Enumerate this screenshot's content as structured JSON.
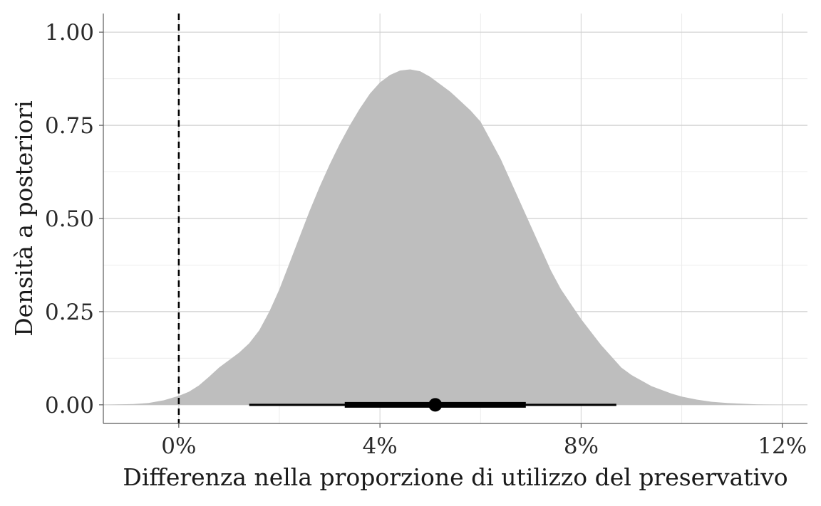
{
  "chart_data": {
    "type": "area",
    "title": "",
    "xlabel": "Differenza nella proporzione di utilizzo del preservativo",
    "ylabel": "Densità a posteriori",
    "xlim": [
      -0.015,
      0.125
    ],
    "ylim": [
      -0.05,
      1.05
    ],
    "x_ticks": [
      0,
      0.04,
      0.08,
      0.12
    ],
    "x_tick_labels": [
      "0%",
      "4%",
      "8%",
      "12%"
    ],
    "y_ticks": [
      0,
      0.25,
      0.5,
      0.75,
      1.0
    ],
    "y_tick_labels": [
      "0.00",
      "0.25",
      "0.50",
      "0.75",
      "1.00"
    ],
    "grid": true,
    "density": {
      "x": [
        -0.015,
        -0.012,
        -0.009,
        -0.006,
        -0.003,
        0.0,
        0.002,
        0.004,
        0.006,
        0.008,
        0.01,
        0.012,
        0.014,
        0.016,
        0.018,
        0.02,
        0.022,
        0.024,
        0.026,
        0.028,
        0.03,
        0.032,
        0.034,
        0.036,
        0.038,
        0.04,
        0.042,
        0.044,
        0.046,
        0.048,
        0.05,
        0.052,
        0.054,
        0.056,
        0.058,
        0.06,
        0.062,
        0.064,
        0.066,
        0.068,
        0.07,
        0.072,
        0.074,
        0.076,
        0.078,
        0.08,
        0.082,
        0.084,
        0.086,
        0.088,
        0.09,
        0.092,
        0.094,
        0.096,
        0.098,
        0.1,
        0.103,
        0.106,
        0.109,
        0.112,
        0.115,
        0.118,
        0.12
      ],
      "y": [
        0.0,
        0.001,
        0.002,
        0.005,
        0.012,
        0.024,
        0.035,
        0.052,
        0.075,
        0.1,
        0.12,
        0.14,
        0.165,
        0.2,
        0.25,
        0.31,
        0.38,
        0.45,
        0.52,
        0.585,
        0.645,
        0.7,
        0.75,
        0.795,
        0.835,
        0.865,
        0.885,
        0.897,
        0.9,
        0.895,
        0.88,
        0.86,
        0.84,
        0.815,
        0.79,
        0.76,
        0.71,
        0.66,
        0.6,
        0.54,
        0.48,
        0.42,
        0.36,
        0.31,
        0.27,
        0.23,
        0.195,
        0.16,
        0.13,
        0.1,
        0.08,
        0.065,
        0.05,
        0.04,
        0.03,
        0.022,
        0.014,
        0.008,
        0.005,
        0.003,
        0.001,
        0.0003,
        0.0
      ],
      "fill": "#bebebe"
    },
    "reference_line": {
      "x": 0,
      "style": "dashed",
      "color": "#000000"
    },
    "point_interval": {
      "point": 0.051,
      "inner_interval": [
        0.033,
        0.069
      ],
      "outer_interval": [
        0.014,
        0.087
      ],
      "color": "#000000"
    }
  }
}
